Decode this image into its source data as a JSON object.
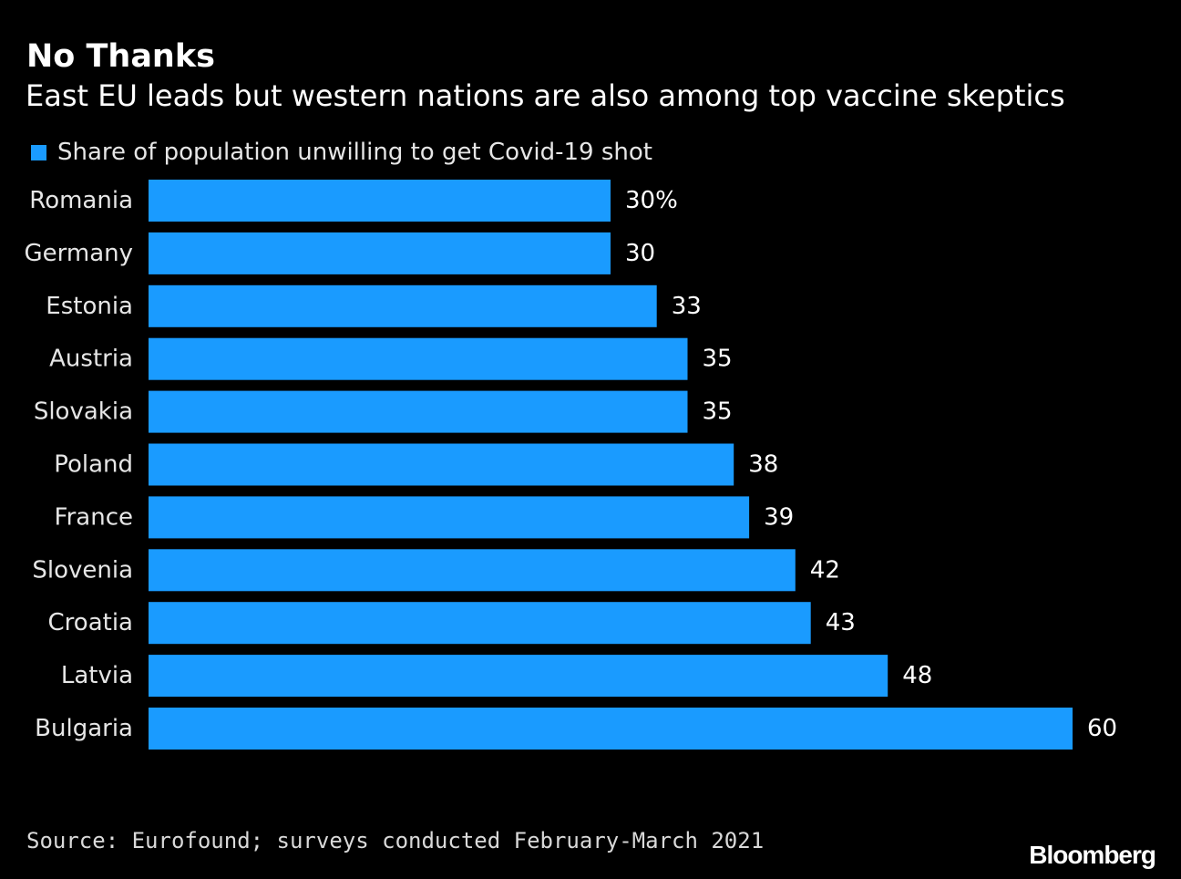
{
  "colors": {
    "background": "#000000",
    "bar": "#1a9bff",
    "text": "#ffffff"
  },
  "brand": "Bloomberg",
  "source": "Source: Eurofound; surveys conducted February-March 2021",
  "chart_data": {
    "type": "bar",
    "orientation": "horizontal",
    "title": "No Thanks",
    "subtitle": "East EU leads but western nations are also among top vaccine skeptics",
    "legend": "top-left",
    "grid": false,
    "unit": "%",
    "categories": [
      "Romania",
      "Germany",
      "Estonia",
      "Austria",
      "Slovakia",
      "Poland",
      "France",
      "Slovenia",
      "Croatia",
      "Latvia",
      "Bulgaria"
    ],
    "series": [
      {
        "name": "Share of population unwilling to get Covid-19 shot",
        "values": [
          30,
          30,
          33,
          35,
          35,
          38,
          39,
          42,
          43,
          48,
          60
        ]
      }
    ],
    "data_labels": [
      "30%",
      "30",
      "33",
      "35",
      "35",
      "38",
      "39",
      "42",
      "43",
      "48",
      "60"
    ],
    "xlim": [
      0,
      60
    ]
  }
}
